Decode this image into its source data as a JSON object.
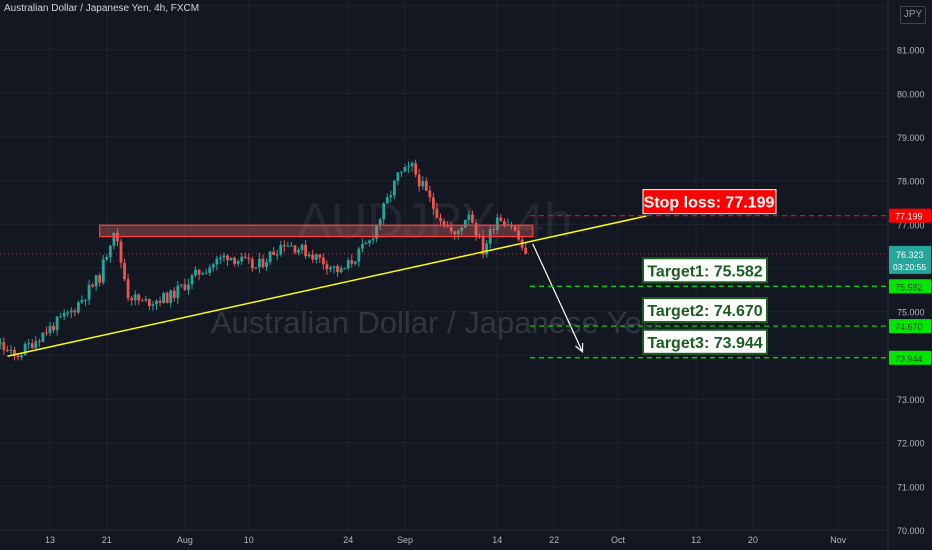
{
  "header": {
    "title": "Australian Dollar / Japanese Yen, 4h, FXCM",
    "currency": "JPY"
  },
  "watermark": {
    "symbol": "AUDJPY, 4h",
    "name": "Australian Dollar / Japanese Yen"
  },
  "colors": {
    "background": "#131722",
    "bull": "#26a69a",
    "bear": "#ef5350",
    "trendline": "#ffff00",
    "stop": "#ff0000",
    "target": "#00e600"
  },
  "chart_data": {
    "type": "candlestick",
    "symbol": "AUDJPY",
    "interval": "4h",
    "source": "FXCM",
    "ylim": [
      70,
      82
    ],
    "y_ticks": [
      "81.000",
      "80.000",
      "79.000",
      "78.000",
      "77.000",
      "75.000",
      "74.000",
      "73.000",
      "72.000",
      "71.000",
      "70.000"
    ],
    "x_ticks": [
      {
        "label": "13",
        "day": 13
      },
      {
        "label": "21",
        "day": 21
      },
      {
        "label": "Aug",
        "day": 32
      },
      {
        "label": "10",
        "day": 41
      },
      {
        "label": "24",
        "day": 55
      },
      {
        "label": "Sep",
        "day": 63
      },
      {
        "label": "14",
        "day": 76
      },
      {
        "label": "22",
        "day": 84
      },
      {
        "label": "Oct",
        "day": 93
      },
      {
        "label": "12",
        "day": 104
      },
      {
        "label": "20",
        "day": 112
      },
      {
        "label": "Nov",
        "day": 124
      }
    ],
    "price_path": [
      {
        "day": 0,
        "price": 74.8
      },
      {
        "day": 4,
        "price": 74.5
      },
      {
        "day": 8,
        "price": 73.95
      },
      {
        "day": 12,
        "price": 74.5
      },
      {
        "day": 16,
        "price": 75.0
      },
      {
        "day": 20,
        "price": 75.8
      },
      {
        "day": 22,
        "price": 76.9
      },
      {
        "day": 24,
        "price": 75.4
      },
      {
        "day": 26,
        "price": 75.2
      },
      {
        "day": 30,
        "price": 75.35
      },
      {
        "day": 34,
        "price": 75.9
      },
      {
        "day": 38,
        "price": 76.3
      },
      {
        "day": 42,
        "price": 76.0
      },
      {
        "day": 46,
        "price": 76.6
      },
      {
        "day": 50,
        "price": 76.3
      },
      {
        "day": 54,
        "price": 75.9
      },
      {
        "day": 58,
        "price": 76.6
      },
      {
        "day": 62,
        "price": 78.1
      },
      {
        "day": 64,
        "price": 78.3
      },
      {
        "day": 67,
        "price": 77.4
      },
      {
        "day": 70,
        "price": 76.7
      },
      {
        "day": 72,
        "price": 77.3
      },
      {
        "day": 74,
        "price": 76.4
      },
      {
        "day": 76,
        "price": 77.2
      },
      {
        "day": 78,
        "price": 77.0
      },
      {
        "day": 80,
        "price": 76.3
      }
    ],
    "current_price": "76.323",
    "countdown": "03:20:55",
    "resistance_zone": {
      "from_day": 20,
      "to_day": 81,
      "low": 76.72,
      "high": 76.98
    },
    "trendline": {
      "start": {
        "day": 7,
        "price": 73.98
      },
      "end": {
        "day": 97,
        "price": 77.19
      }
    },
    "projection": {
      "start": {
        "day": 81,
        "price": 76.55
      },
      "end": {
        "day": 88,
        "price": 74.08
      }
    },
    "stop_loss": {
      "label": "Stop loss: 77.199",
      "price": 77.199,
      "axis_label": "77.199"
    },
    "targets": [
      {
        "label": "Target1: 75.582",
        "price": 75.582,
        "axis_label": "75.582"
      },
      {
        "label": "Target2: 74.670",
        "price": 74.67,
        "axis_label": "74.670"
      },
      {
        "label": "Target3: 73.944",
        "price": 73.944,
        "axis_label": "73.944"
      }
    ]
  }
}
